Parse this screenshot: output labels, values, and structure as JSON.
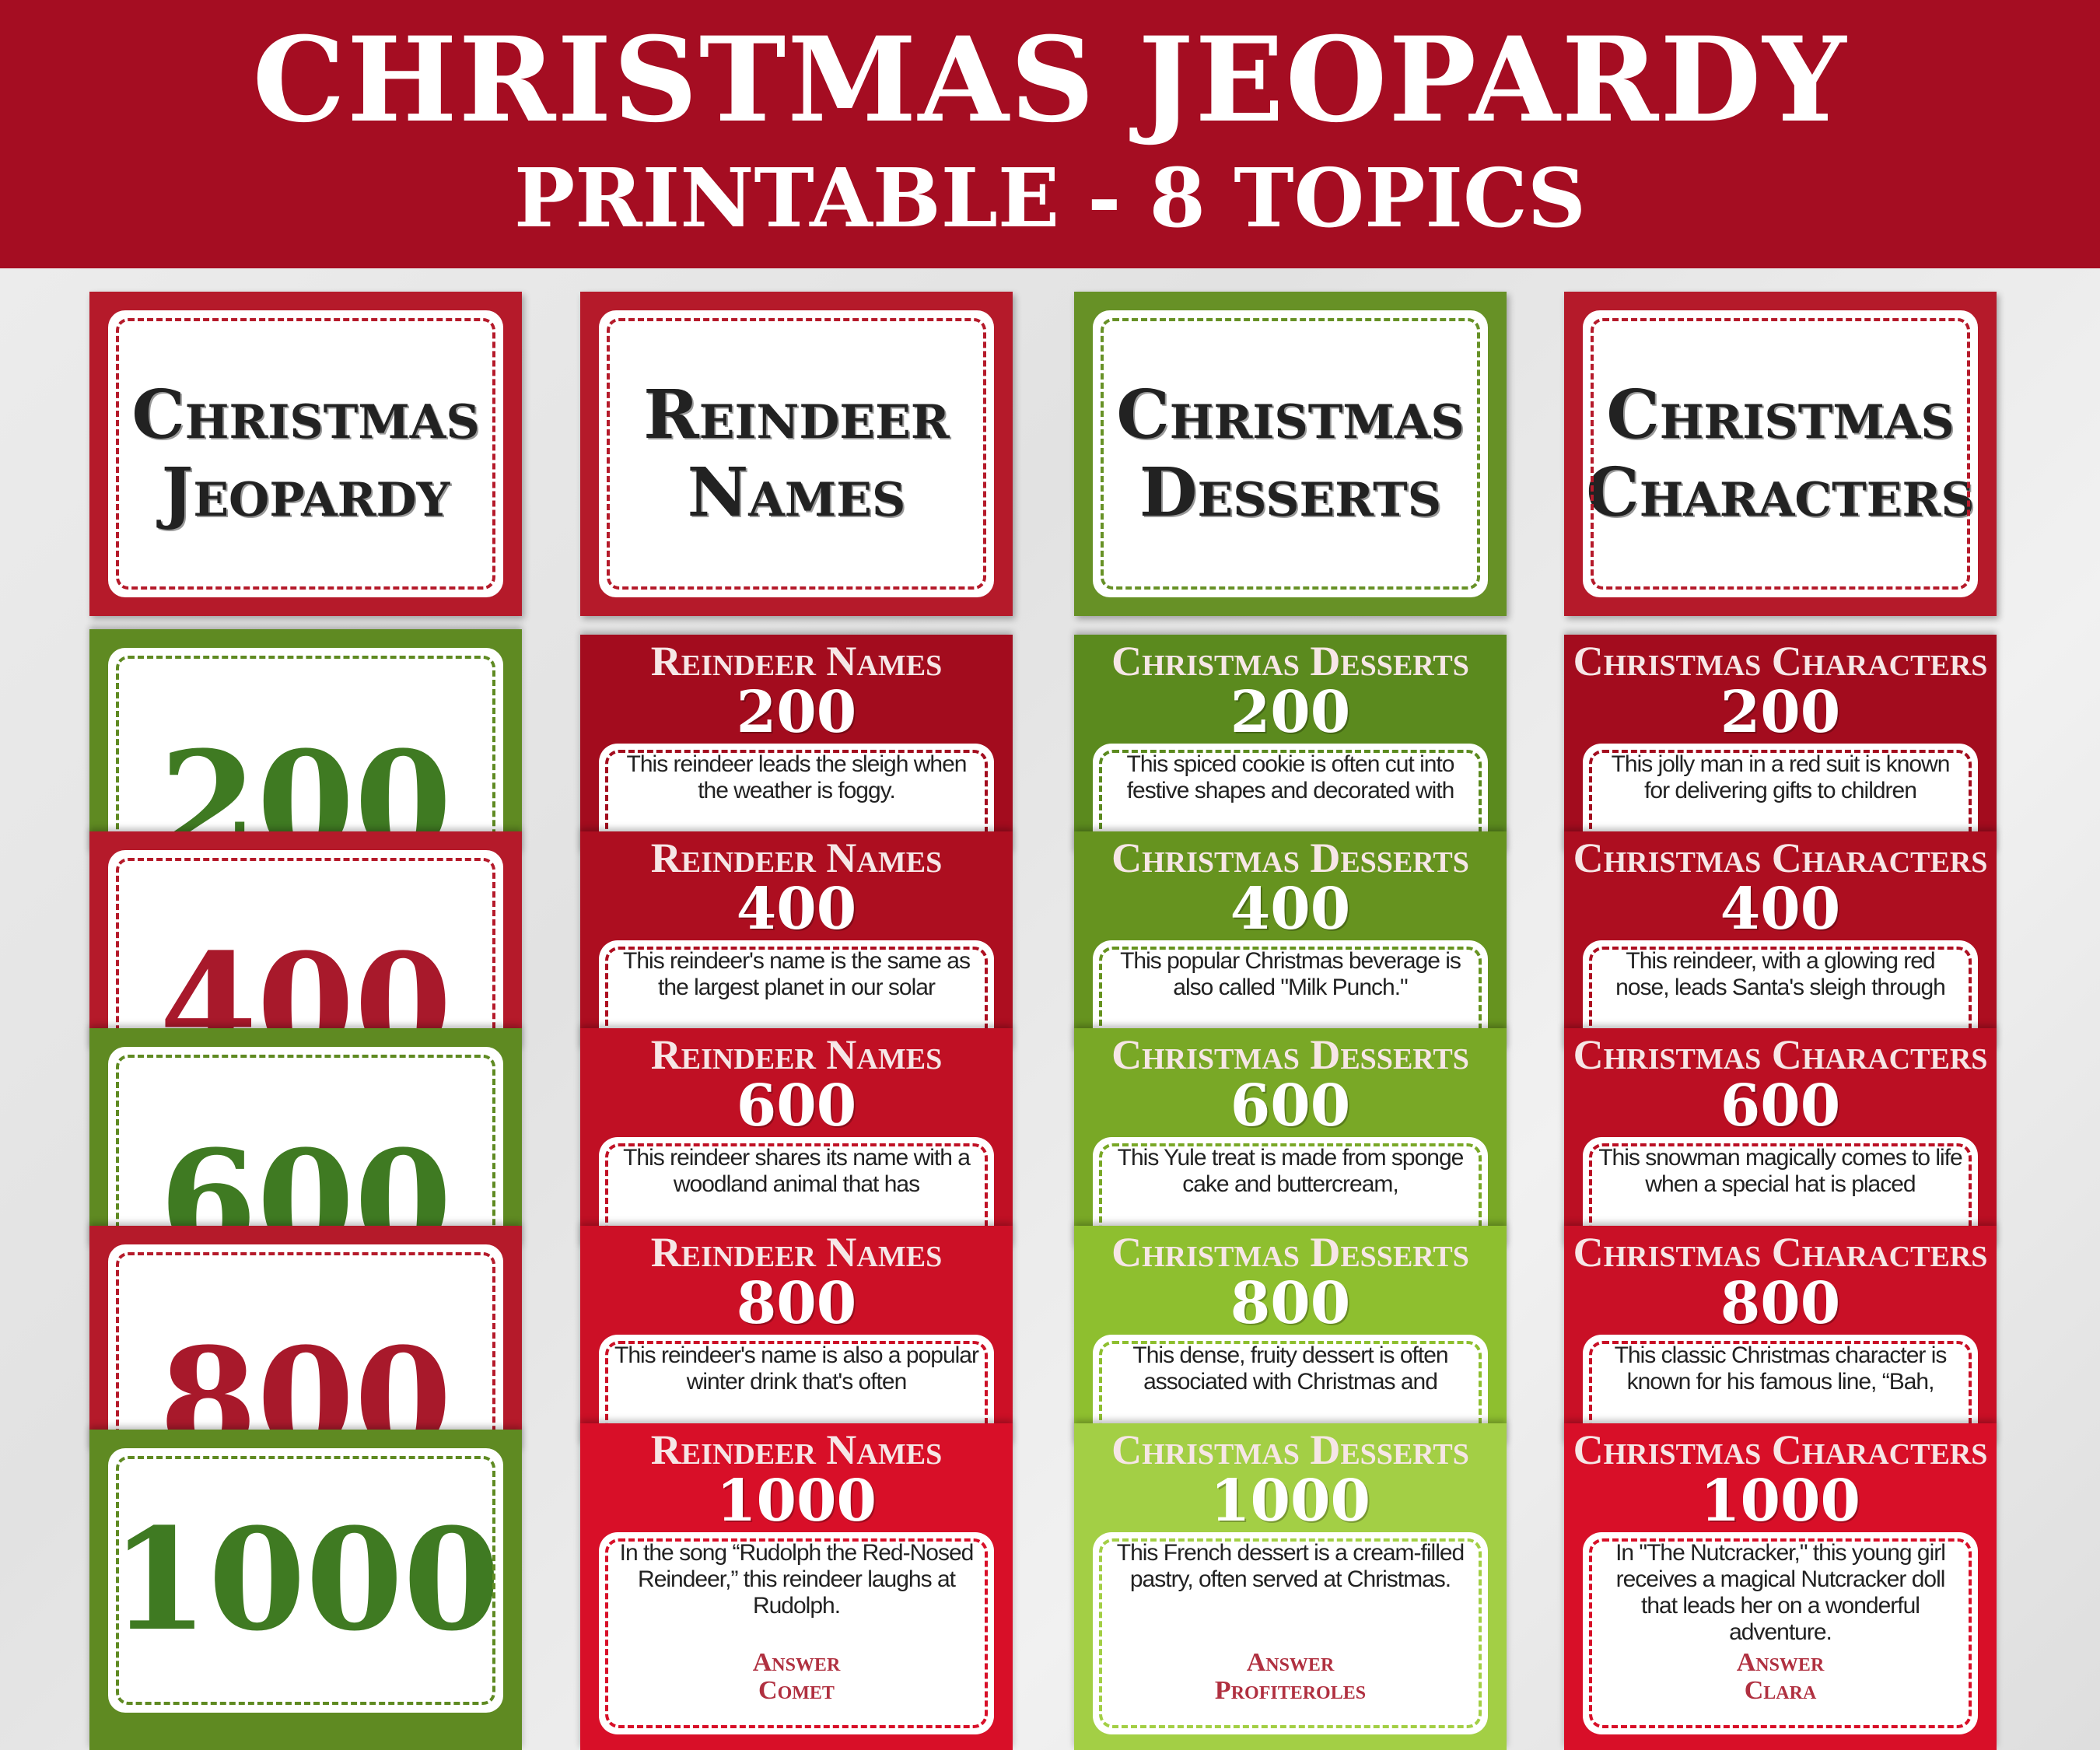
{
  "header": {
    "title": "CHRISTMAS JEOPARDY",
    "subtitle": "PRINTABLE - 8 TOPICS"
  },
  "colors": {
    "header_red": "#a50d22",
    "dark_red": "#a50d1e",
    "bright_red": "#d9102a",
    "dark_green": "#5c8a1e",
    "light_green": "#9cc63a"
  },
  "category_cards": [
    {
      "lines": [
        "Christmas",
        "Jeopardy"
      ],
      "color": "#b51a2a"
    },
    {
      "lines": [
        "Reindeer",
        "Names"
      ],
      "color": "#b51a2a"
    },
    {
      "lines": [
        "Christmas",
        "Desserts"
      ],
      "color": "#679126"
    },
    {
      "lines": [
        "Christmas",
        "Characters"
      ],
      "color": "#b51a2a"
    }
  ],
  "value_cards": [
    {
      "value": "200",
      "color": "#5f8a22",
      "number_color": "#3f7a22"
    },
    {
      "value": "400",
      "color": "#b51a2a",
      "number_color": "#a8192b"
    },
    {
      "value": "600",
      "color": "#5f8a22",
      "number_color": "#3f7a22"
    },
    {
      "value": "800",
      "color": "#b51a2a",
      "number_color": "#a8192b"
    },
    {
      "value": "1000",
      "color": "#5f8a22",
      "number_color": "#3f7a22"
    }
  ],
  "columns": [
    {
      "category": "Reindeer Names",
      "cards": [
        {
          "value": "200",
          "color": "#a30c1e",
          "question": "This reindeer leads the sleigh when the weather is foggy."
        },
        {
          "value": "400",
          "color": "#ad0e20",
          "question": "This reindeer's name is the same as the largest planet in our solar"
        },
        {
          "value": "600",
          "color": "#c01024",
          "question": "This reindeer shares its name with a woodland animal that has"
        },
        {
          "value": "800",
          "color": "#cc1026",
          "question": "This reindeer's name is also a popular winter drink that's often"
        },
        {
          "value": "1000",
          "color": "#d80f28",
          "question": "In the song “Rudolph the Red-Nosed Reindeer,” this reindeer laughs at Rudolph.",
          "answer_label": "Answer",
          "answer": "Comet"
        }
      ]
    },
    {
      "category": "Christmas Desserts",
      "cards": [
        {
          "value": "200",
          "color": "#5b8a1e",
          "question": "This spiced cookie is often cut into festive shapes and decorated with"
        },
        {
          "value": "400",
          "color": "#66931f",
          "question": "This popular Christmas beverage is also called \"Milk Punch.\""
        },
        {
          "value": "600",
          "color": "#79a826",
          "question": "This Yule treat is made from sponge cake and buttercream,"
        },
        {
          "value": "800",
          "color": "#8ebf2f",
          "question": "This dense, fruity dessert is often associated with Christmas and"
        },
        {
          "value": "1000",
          "color": "#a3cf45",
          "question": "This French dessert is a cream-filled pastry, often served at Christmas.",
          "answer_label": "Answer",
          "answer": "Profiteroles"
        }
      ]
    },
    {
      "category": "Christmas Characters",
      "cards": [
        {
          "value": "200",
          "color": "#a30c1e",
          "question": "This jolly man in a red suit is known for delivering gifts to children"
        },
        {
          "value": "400",
          "color": "#ad0e20",
          "question": "This reindeer, with a glowing red nose, leads Santa's sleigh through"
        },
        {
          "value": "600",
          "color": "#bb0f23",
          "question": "This snowman magically comes to life when a special hat is placed"
        },
        {
          "value": "800",
          "color": "#c91026",
          "question": "This classic Christmas character is known for his famous line, “Bah,"
        },
        {
          "value": "1000",
          "color": "#d80f28",
          "question": "In \"The Nutcracker,\" this young girl receives a magical Nutcracker doll that leads her on a wonderful adventure.",
          "answer_label": "Answer",
          "answer": "Clara"
        }
      ]
    }
  ]
}
